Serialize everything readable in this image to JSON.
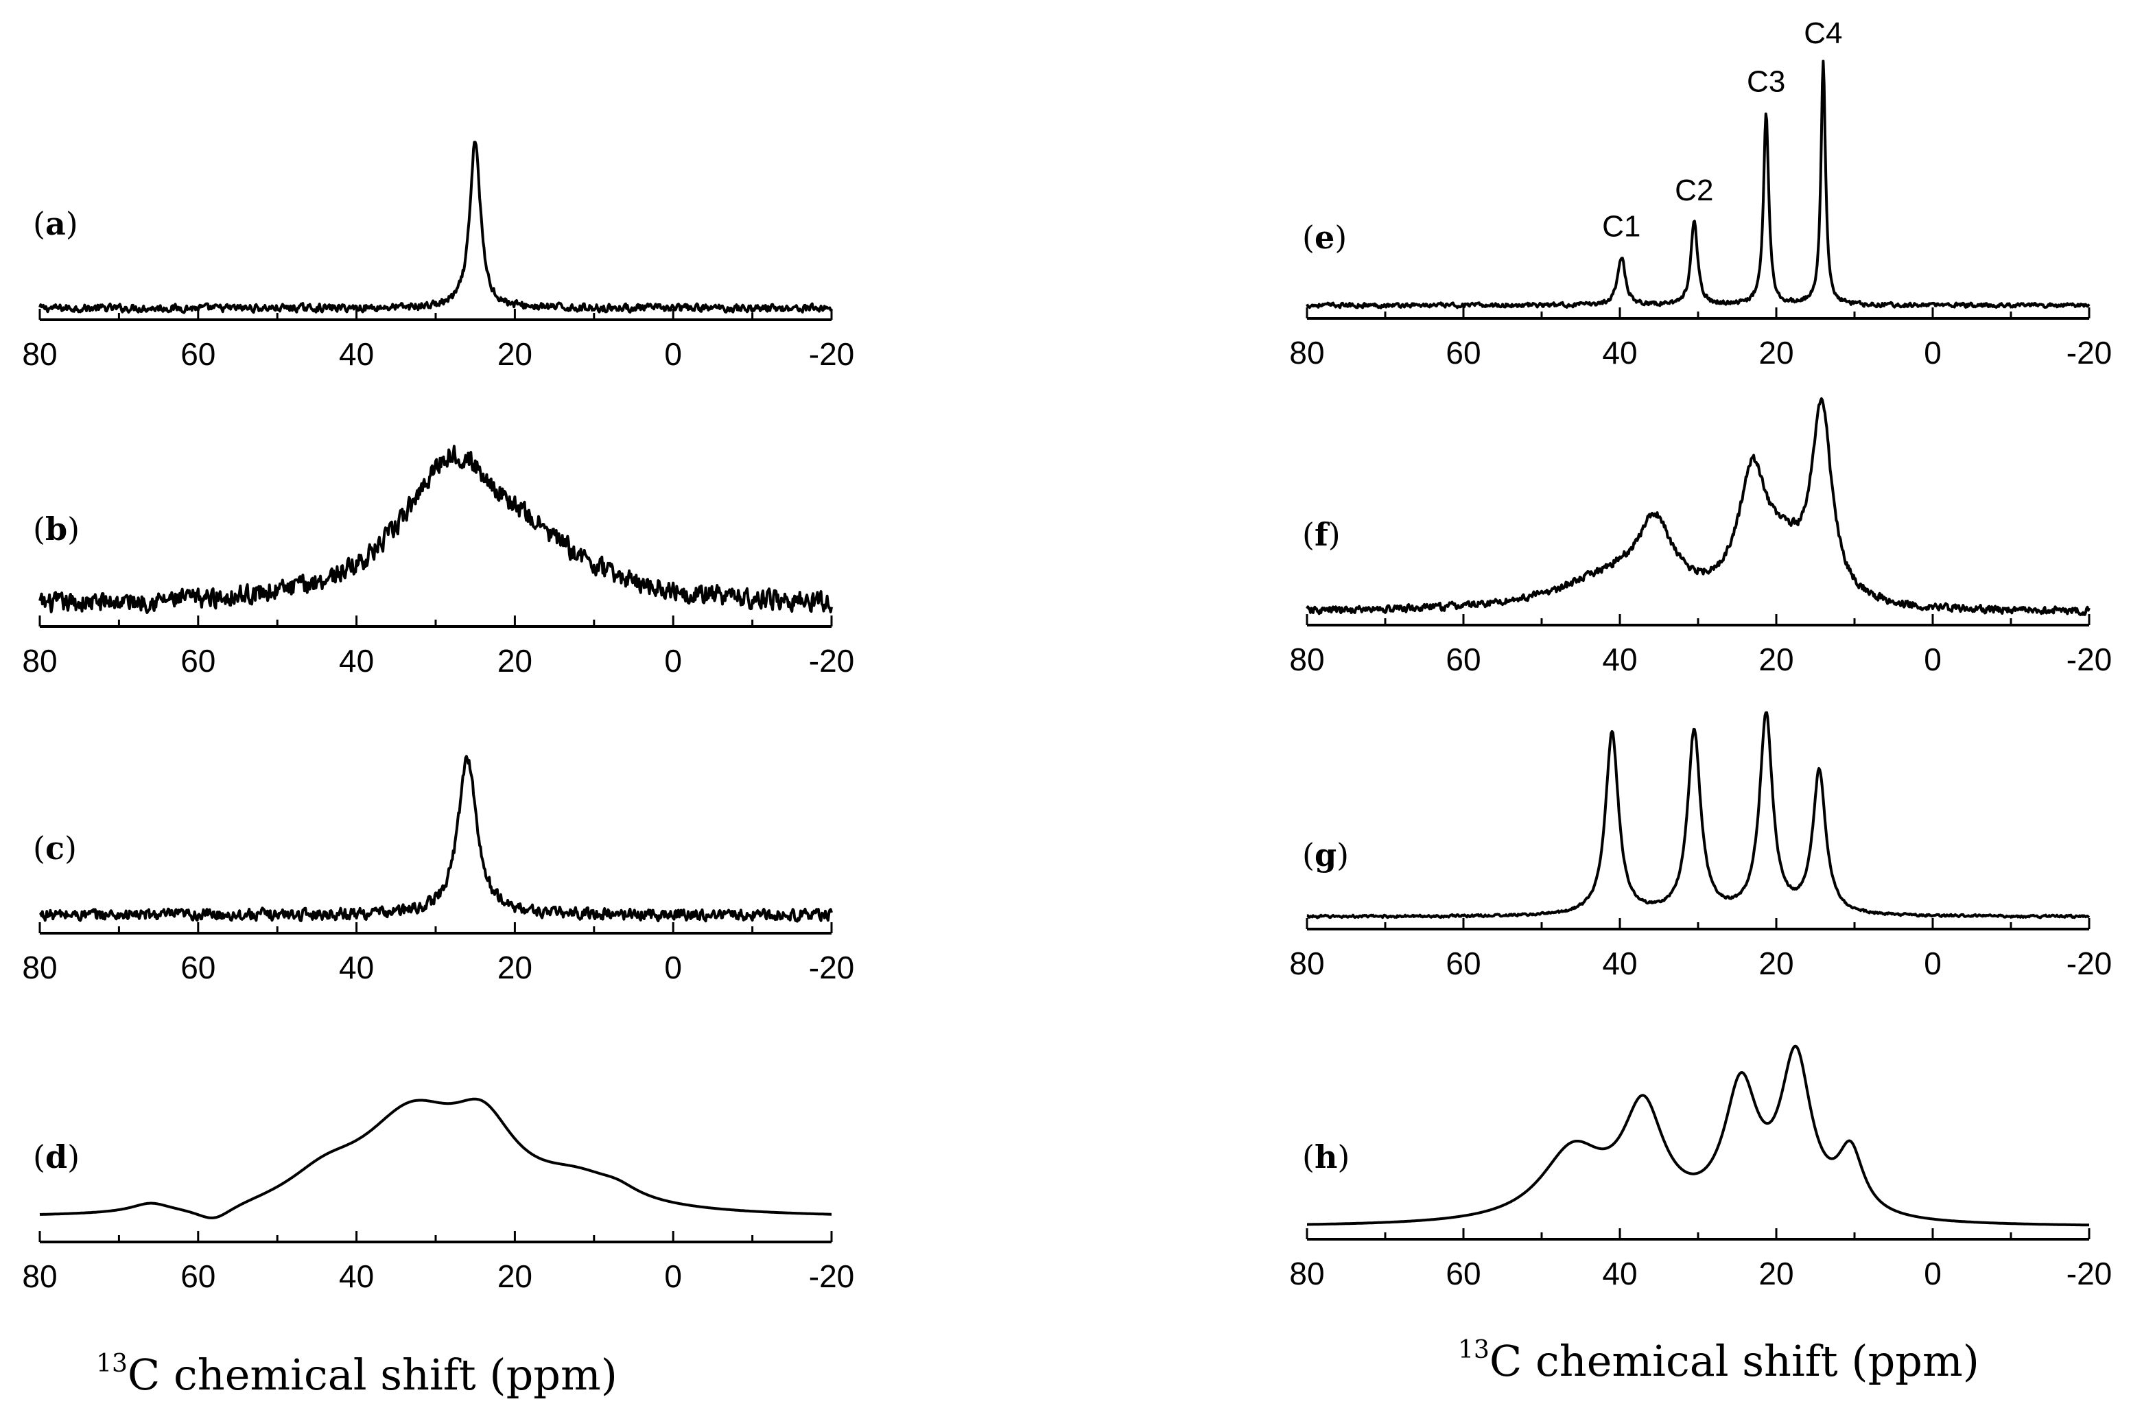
{
  "figure": {
    "x_axis_title_prefix": "13",
    "x_axis_title_main": "C chemical shift (ppm)"
  },
  "chart_data": [
    {
      "type": "line",
      "id": "a",
      "label": "(a)",
      "xlabel": "13C chemical shift (ppm)",
      "xlim": [
        80,
        -20
      ],
      "xticks": [
        80,
        60,
        40,
        20,
        0,
        -20
      ],
      "xtick_labels": [
        "80",
        "60",
        "40",
        "20",
        "0",
        "-20"
      ],
      "baseline": 0.02,
      "noise": 0.03,
      "peaks": [
        {
          "center": 25,
          "height": 1.0,
          "width": 0.8
        }
      ],
      "peak_labels": []
    },
    {
      "type": "line",
      "id": "b",
      "label": "(b)",
      "xlabel": "13C chemical shift (ppm)",
      "xlim": [
        80,
        -20
      ],
      "xticks": [
        80,
        60,
        40,
        20,
        0,
        -20
      ],
      "xtick_labels": [
        "80",
        "60",
        "40",
        "20",
        "0",
        "-20"
      ],
      "baseline": 0.06,
      "noise": 0.07,
      "peaks": [
        {
          "center": 28,
          "height": 0.72,
          "width": 7.5
        },
        {
          "center": 18,
          "height": 0.22,
          "width": 9
        }
      ],
      "peak_labels": []
    },
    {
      "type": "line",
      "id": "c",
      "label": "(c)",
      "xlabel": "13C chemical shift (ppm)",
      "xlim": [
        80,
        -20
      ],
      "xticks": [
        80,
        60,
        40,
        20,
        0,
        -20
      ],
      "xtick_labels": [
        "80",
        "60",
        "40",
        "20",
        "0",
        "-20"
      ],
      "baseline": 0.06,
      "noise": 0.045,
      "peaks": [
        {
          "center": 26,
          "height": 0.95,
          "width": 1.4
        }
      ],
      "peak_labels": []
    },
    {
      "type": "line",
      "id": "d",
      "label": "(d)",
      "xlabel": "13C chemical shift (ppm)",
      "xlim": [
        80,
        -20
      ],
      "xticks": [
        80,
        60,
        40,
        20,
        0,
        -20
      ],
      "xtick_labels": [
        "80",
        "60",
        "40",
        "20",
        "0",
        "-20"
      ],
      "baseline": 0.1,
      "noise": 0,
      "peaks": [
        {
          "center": 33,
          "height": 0.62,
          "width": 8
        },
        {
          "center": 24,
          "height": 0.45,
          "width": 5
        },
        {
          "center": 44,
          "height": 0.18,
          "width": 6
        },
        {
          "center": 12,
          "height": 0.18,
          "width": 7
        },
        {
          "center": 66,
          "height": 0.06,
          "width": 3
        },
        {
          "center": 58,
          "height": -0.1,
          "width": 3
        },
        {
          "center": 7,
          "height": 0.05,
          "width": 3
        }
      ],
      "peak_labels": []
    },
    {
      "type": "line",
      "id": "e",
      "label": "(e)",
      "xlabel": "13C chemical shift (ppm)",
      "xlim": [
        80,
        -20
      ],
      "xticks": [
        80,
        60,
        40,
        20,
        0,
        -20
      ],
      "xtick_labels": [
        "80",
        "60",
        "40",
        "20",
        "0",
        "-20"
      ],
      "baseline": 0.02,
      "noise": 0.012,
      "peaks": [
        {
          "center": 39.8,
          "height": 0.2,
          "width": 0.6
        },
        {
          "center": 30.5,
          "height": 0.35,
          "width": 0.5
        },
        {
          "center": 21.3,
          "height": 0.8,
          "width": 0.4
        },
        {
          "center": 14.0,
          "height": 1.0,
          "width": 0.35
        }
      ],
      "peak_labels": [
        {
          "text": "C1",
          "x": 39.8
        },
        {
          "text": "C2",
          "x": 30.5
        },
        {
          "text": "C3",
          "x": 21.3
        },
        {
          "text": "C4",
          "x": 14.0
        }
      ]
    },
    {
      "type": "line",
      "id": "f",
      "label": "(f)",
      "xlabel": "13C chemical shift (ppm)",
      "xlim": [
        80,
        -20
      ],
      "xticks": [
        80,
        60,
        40,
        20,
        0,
        -20
      ],
      "xtick_labels": [
        "80",
        "60",
        "40",
        "20",
        "0",
        "-20"
      ],
      "baseline": 0.02,
      "noise": 0.025,
      "peaks": [
        {
          "center": 35.5,
          "height": 0.33,
          "width": 2.5
        },
        {
          "center": 40,
          "height": 0.18,
          "width": 9
        },
        {
          "center": 23,
          "height": 0.62,
          "width": 2.2
        },
        {
          "center": 19,
          "height": 0.2,
          "width": 3
        },
        {
          "center": 14.2,
          "height": 0.95,
          "width": 1.6
        }
      ],
      "peak_labels": []
    },
    {
      "type": "line",
      "id": "g",
      "label": "(g)",
      "xlabel": "13C chemical shift (ppm)",
      "xlim": [
        80,
        -20
      ],
      "xticks": [
        80,
        60,
        40,
        20,
        0,
        -20
      ],
      "xtick_labels": [
        "80",
        "60",
        "40",
        "20",
        "0",
        "-20"
      ],
      "baseline": 0.02,
      "noise": 0.008,
      "peaks": [
        {
          "center": 41,
          "height": 0.9,
          "width": 1.0
        },
        {
          "center": 30.5,
          "height": 0.9,
          "width": 1.0
        },
        {
          "center": 21.3,
          "height": 0.98,
          "width": 1.0
        },
        {
          "center": 14.5,
          "height": 0.7,
          "width": 1.0
        }
      ],
      "peak_labels": []
    },
    {
      "type": "line",
      "id": "h",
      "label": "(h)",
      "xlabel": "13C chemical shift (ppm)",
      "xlim": [
        80,
        -20
      ],
      "xticks": [
        80,
        60,
        40,
        20,
        0,
        -20
      ],
      "xtick_labels": [
        "80",
        "60",
        "40",
        "20",
        "0",
        "-20"
      ],
      "baseline": 0.02,
      "noise": 0,
      "peaks": [
        {
          "center": 46,
          "height": 0.36,
          "width": 5.0
        },
        {
          "center": 37,
          "height": 0.55,
          "width": 3.2
        },
        {
          "center": 24.5,
          "height": 0.65,
          "width": 2.6
        },
        {
          "center": 17.5,
          "height": 0.8,
          "width": 2.4
        },
        {
          "center": 10.5,
          "height": 0.32,
          "width": 2.0
        }
      ],
      "peak_labels": []
    }
  ]
}
